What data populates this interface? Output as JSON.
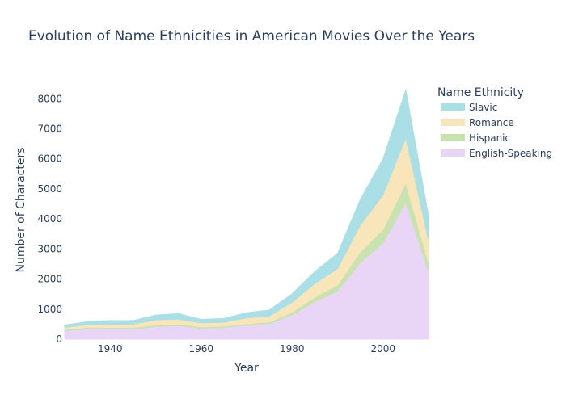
{
  "chart_data": {
    "type": "area",
    "stacked": true,
    "title": "Evolution of Name Ethnicities in American Movies Over the Years",
    "xlabel": "Year",
    "ylabel": "Number of Characters",
    "xlim": [
      1930,
      2010
    ],
    "ylim": [
      0,
      8600
    ],
    "x_ticks": [
      1940,
      1960,
      1980,
      2000
    ],
    "y_ticks": [
      0,
      1000,
      2000,
      3000,
      4000,
      5000,
      6000,
      7000,
      8000
    ],
    "grid": false,
    "legend": {
      "title": "Name Ethnicity",
      "placement": "top-right"
    },
    "x": [
      1930,
      1935,
      1940,
      1945,
      1950,
      1955,
      1960,
      1965,
      1970,
      1975,
      1980,
      1985,
      1990,
      1995,
      2000,
      2005,
      2010
    ],
    "series": [
      {
        "name": "English-Speaking",
        "color": "#e9d6f7",
        "values": [
          280,
          340,
          340,
          340,
          420,
          450,
          370,
          390,
          460,
          520,
          800,
          1250,
          1600,
          2550,
          3200,
          4550,
          2250
        ]
      },
      {
        "name": "Hispanic",
        "color": "#c9e3b0",
        "values": [
          40,
          50,
          50,
          50,
          50,
          50,
          40,
          40,
          50,
          50,
          100,
          150,
          200,
          350,
          450,
          650,
          300
        ]
      },
      {
        "name": "Romance",
        "color": "#f8e5b9",
        "values": [
          70,
          90,
          110,
          110,
          170,
          170,
          130,
          130,
          200,
          200,
          330,
          450,
          550,
          900,
          1150,
          1500,
          750
        ]
      },
      {
        "name": "Slavic",
        "color": "#aadfe6",
        "values": [
          80,
          100,
          120,
          120,
          160,
          180,
          120,
          130,
          170,
          200,
          280,
          400,
          500,
          850,
          1200,
          1600,
          800
        ]
      }
    ]
  }
}
